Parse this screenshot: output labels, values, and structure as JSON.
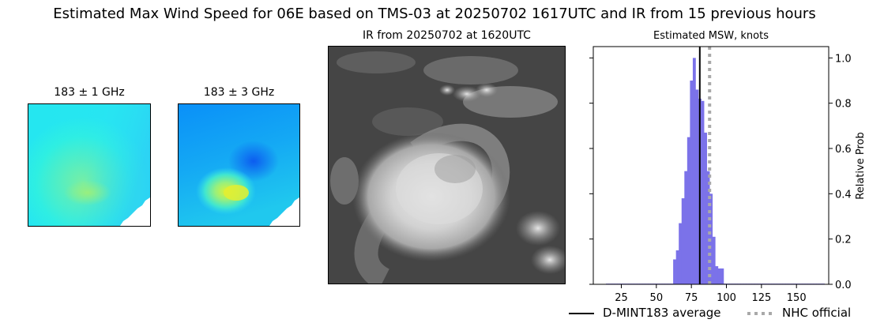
{
  "title": "Estimated Max Wind Speed for 06E based on TMS-03 at 20250702 1617UTC and IR from 15 previous hours",
  "panels": {
    "mw1": {
      "title": "183 ± 1 GHz"
    },
    "mw3": {
      "title": "183 ± 3 GHz"
    },
    "ir": {
      "title": "IR from 20250702 at 1620UTC"
    },
    "hist": {
      "title": "Estimated MSW, knots"
    }
  },
  "legend": {
    "dmint_label": "D-MINT183 average",
    "nhc_label": "NHC official"
  },
  "colors": {
    "bars": "#7b72e9",
    "dmint_line": "#000000",
    "nhc_line": "#a9a9a9"
  },
  "chart_data": {
    "type": "bar",
    "title": "Estimated MSW, knots",
    "xlabel": "",
    "ylabel": "Relative Prob",
    "xlim": [
      5,
      173
    ],
    "ylim": [
      0,
      1.05
    ],
    "x_ticks": [
      25,
      50,
      75,
      100,
      125,
      150
    ],
    "y_ticks": [
      0.0,
      0.2,
      0.4,
      0.6,
      0.8,
      1.0
    ],
    "y_tick_labels": [
      "0.0",
      "0.2",
      "0.4",
      "0.6",
      "0.8",
      "1.0"
    ],
    "bin_width": 2,
    "bins": [
      {
        "x": 15,
        "value": 0.003
      },
      {
        "x": 17,
        "value": 0.003
      },
      {
        "x": 19,
        "value": 0.003
      },
      {
        "x": 21,
        "value": 0.003
      },
      {
        "x": 23,
        "value": 0.003
      },
      {
        "x": 25,
        "value": 0.003
      },
      {
        "x": 27,
        "value": 0.003
      },
      {
        "x": 29,
        "value": 0.003
      },
      {
        "x": 31,
        "value": 0.003
      },
      {
        "x": 33,
        "value": 0.003
      },
      {
        "x": 35,
        "value": 0.003
      },
      {
        "x": 37,
        "value": 0.003
      },
      {
        "x": 39,
        "value": 0.003
      },
      {
        "x": 41,
        "value": 0.003
      },
      {
        "x": 43,
        "value": 0.003
      },
      {
        "x": 45,
        "value": 0.003
      },
      {
        "x": 47,
        "value": 0.003
      },
      {
        "x": 49,
        "value": 0.003
      },
      {
        "x": 51,
        "value": 0.003
      },
      {
        "x": 53,
        "value": 0.003
      },
      {
        "x": 55,
        "value": 0.003
      },
      {
        "x": 57,
        "value": 0.003
      },
      {
        "x": 59,
        "value": 0.003
      },
      {
        "x": 61,
        "value": 0.003
      },
      {
        "x": 63,
        "value": 0.11
      },
      {
        "x": 65,
        "value": 0.15
      },
      {
        "x": 67,
        "value": 0.27
      },
      {
        "x": 69,
        "value": 0.38
      },
      {
        "x": 71,
        "value": 0.5
      },
      {
        "x": 73,
        "value": 0.65
      },
      {
        "x": 75,
        "value": 0.9
      },
      {
        "x": 77,
        "value": 1.0
      },
      {
        "x": 79,
        "value": 0.86
      },
      {
        "x": 81,
        "value": 0.82
      },
      {
        "x": 83,
        "value": 0.81
      },
      {
        "x": 85,
        "value": 0.67
      },
      {
        "x": 87,
        "value": 0.5
      },
      {
        "x": 89,
        "value": 0.4
      },
      {
        "x": 91,
        "value": 0.21
      },
      {
        "x": 93,
        "value": 0.08
      },
      {
        "x": 95,
        "value": 0.07
      },
      {
        "x": 97,
        "value": 0.07
      },
      {
        "x": 99,
        "value": 0.003
      },
      {
        "x": 101,
        "value": 0.003
      },
      {
        "x": 103,
        "value": 0.003
      },
      {
        "x": 105,
        "value": 0.003
      },
      {
        "x": 107,
        "value": 0.003
      },
      {
        "x": 109,
        "value": 0.003
      },
      {
        "x": 111,
        "value": 0.003
      },
      {
        "x": 113,
        "value": 0.003
      },
      {
        "x": 115,
        "value": 0.003
      },
      {
        "x": 117,
        "value": 0.003
      },
      {
        "x": 119,
        "value": 0.003
      },
      {
        "x": 121,
        "value": 0.003
      },
      {
        "x": 123,
        "value": 0.003
      },
      {
        "x": 125,
        "value": 0.003
      },
      {
        "x": 127,
        "value": 0.003
      },
      {
        "x": 129,
        "value": 0.003
      },
      {
        "x": 131,
        "value": 0.003
      },
      {
        "x": 133,
        "value": 0.003
      },
      {
        "x": 135,
        "value": 0.003
      },
      {
        "x": 137,
        "value": 0.003
      },
      {
        "x": 139,
        "value": 0.003
      },
      {
        "x": 141,
        "value": 0.003
      },
      {
        "x": 143,
        "value": 0.003
      },
      {
        "x": 145,
        "value": 0.003
      },
      {
        "x": 147,
        "value": 0.003
      },
      {
        "x": 149,
        "value": 0.003
      },
      {
        "x": 151,
        "value": 0.003
      },
      {
        "x": 153,
        "value": 0.003
      },
      {
        "x": 155,
        "value": 0.003
      },
      {
        "x": 157,
        "value": 0.003
      },
      {
        "x": 159,
        "value": 0.003
      },
      {
        "x": 161,
        "value": 0.003
      },
      {
        "x": 163,
        "value": 0.003
      },
      {
        "x": 165,
        "value": 0.003
      },
      {
        "x": 167,
        "value": 0.003
      },
      {
        "x": 169,
        "value": 0.003
      }
    ],
    "dmint_average": 81,
    "nhc_official": 88,
    "grid": false,
    "legend_placement": "bottom"
  }
}
